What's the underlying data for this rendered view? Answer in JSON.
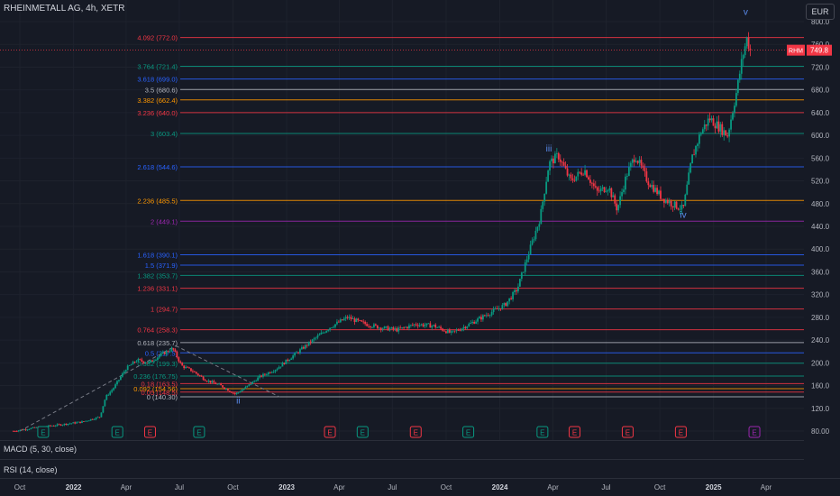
{
  "header": {
    "symbol_title": "RHEINMETALL AG, 4h, XETR",
    "currency": "EUR"
  },
  "price_axis": {
    "ticks": [
      "800.0",
      "760.0",
      "720.0",
      "680.0",
      "640.0",
      "600.0",
      "560.0",
      "520.0",
      "480.0",
      "440.0",
      "400.0",
      "360.0",
      "320.0",
      "280.0",
      "240.0",
      "200.0",
      "160.0",
      "120.0",
      "80.00"
    ]
  },
  "time_axis": {
    "labels": [
      "Oct",
      "2022",
      "Apr",
      "Jul",
      "Oct",
      "2023",
      "Apr",
      "Jul",
      "Oct",
      "2024",
      "Apr",
      "Jul",
      "Oct",
      "2025",
      "Apr"
    ]
  },
  "last_price": {
    "ticker": "RHM",
    "value": "749.8",
    "color": "#f23645"
  },
  "fib_levels": [
    {
      "label": "4.092 (772.0)",
      "value": 772.0,
      "color": "#f23645"
    },
    {
      "label": "3.764 (721.4)",
      "value": 721.4,
      "color": "#089981"
    },
    {
      "label": "3.618 (699.0)",
      "value": 699.0,
      "color": "#2962ff"
    },
    {
      "label": "3.5 (680.6)",
      "value": 680.6,
      "color": "#b2b5be"
    },
    {
      "label": "3.382 (662.4)",
      "value": 662.4,
      "color": "#ff9800"
    },
    {
      "label": "3.236 (640.0)",
      "value": 640.0,
      "color": "#f23645"
    },
    {
      "label": "3 (603.4)",
      "value": 603.4,
      "color": "#089981"
    },
    {
      "label": "2.618 (544.6)",
      "value": 544.6,
      "color": "#2962ff"
    },
    {
      "label": "2.236 (485.5)",
      "value": 485.5,
      "color": "#ff9800"
    },
    {
      "label": "2 (449.1)",
      "value": 449.1,
      "color": "#9c27b0"
    },
    {
      "label": "1.618 (390.1)",
      "value": 390.1,
      "color": "#2962ff"
    },
    {
      "label": "1.5 (371.9)",
      "value": 371.9,
      "color": "#2962ff"
    },
    {
      "label": "1.382 (353.7)",
      "value": 353.7,
      "color": "#089981"
    },
    {
      "label": "1.236 (331.1)",
      "value": 331.1,
      "color": "#f23645"
    },
    {
      "label": "1 (294.7)",
      "value": 294.7,
      "color": "#f23645"
    },
    {
      "label": "0.764 (258.3)",
      "value": 258.3,
      "color": "#f23645"
    },
    {
      "label": "0.618 (235.7)",
      "value": 235.7,
      "color": "#b2b5be"
    },
    {
      "label": "0.5 (217.5)",
      "value": 217.5,
      "color": "#2962ff"
    },
    {
      "label": "0.382 (199.3)",
      "value": 199.3,
      "color": "#089981"
    },
    {
      "label": "0.236 (176.75)",
      "value": 176.75,
      "color": "#089981"
    },
    {
      "label": "0.18 (163.5)",
      "value": 163.5,
      "color": "#f23645"
    },
    {
      "label": "0.092 (154.56)",
      "value": 154.56,
      "color": "#ff9800"
    },
    {
      "label": "0.05 (148.5)",
      "value": 148.5,
      "color": "#f23645"
    },
    {
      "label": "0 (140.30)",
      "value": 140.3,
      "color": "#b2b5be"
    }
  ],
  "wave_labels": [
    {
      "text": "ii",
      "date": "2022-10-10",
      "price": 128,
      "color": "#5b8def"
    },
    {
      "text": "iii",
      "date": "2024-03-25",
      "price": 572,
      "color": "#5b8def"
    },
    {
      "text": "iv",
      "date": "2024-11-10",
      "price": 455,
      "color": "#5b8def"
    },
    {
      "text": "v",
      "date": "2025-02-25",
      "price": 812,
      "color": "#5b8def"
    }
  ],
  "earnings_markers": [
    {
      "type": "E",
      "kind": "positive",
      "date": "2021-11-10"
    },
    {
      "type": "E",
      "kind": "positive",
      "date": "2022-03-17"
    },
    {
      "type": "E",
      "kind": "negative",
      "date": "2022-05-12"
    },
    {
      "type": "E",
      "kind": "positive",
      "date": "2022-08-04"
    },
    {
      "type": "E",
      "kind": "negative",
      "date": "2023-03-16"
    },
    {
      "type": "E",
      "kind": "positive",
      "date": "2023-05-11"
    },
    {
      "type": "E",
      "kind": "negative",
      "date": "2023-08-10"
    },
    {
      "type": "E",
      "kind": "positive",
      "date": "2023-11-08"
    },
    {
      "type": "E",
      "kind": "positive",
      "date": "2024-03-14"
    },
    {
      "type": "E",
      "kind": "negative",
      "date": "2024-05-08"
    },
    {
      "type": "E",
      "kind": "negative",
      "date": "2024-08-07"
    },
    {
      "type": "E",
      "kind": "negative",
      "date": "2024-11-06"
    },
    {
      "type": "E",
      "kind": "upcoming",
      "date": "2025-03-12"
    }
  ],
  "indicators": {
    "macd_label": "MACD (5, 30, close)",
    "rsi_label": "RSI (14, close)"
  },
  "colors": {
    "up": "#089981",
    "down": "#f23645",
    "background": "#161a25",
    "grid": "#1e222d"
  },
  "chart_data": {
    "type": "candlestick",
    "title": "RHEINMETALL AG, 4h, XETR",
    "ylim": [
      80,
      820
    ],
    "series": [
      {
        "name": "RHM",
        "points": [
          [
            "2021-09-20",
            80
          ],
          [
            "2021-10-15",
            84
          ],
          [
            "2021-11-15",
            88
          ],
          [
            "2021-12-15",
            92
          ],
          [
            "2022-01-15",
            96
          ],
          [
            "2022-02-15",
            105
          ],
          [
            "2022-02-25",
            140
          ],
          [
            "2022-03-10",
            155
          ],
          [
            "2022-04-01",
            190
          ],
          [
            "2022-04-20",
            205
          ],
          [
            "2022-05-10",
            200
          ],
          [
            "2022-06-01",
            215
          ],
          [
            "2022-06-20",
            225
          ],
          [
            "2022-07-05",
            195
          ],
          [
            "2022-07-25",
            185
          ],
          [
            "2022-08-15",
            170
          ],
          [
            "2022-09-10",
            160
          ],
          [
            "2022-10-05",
            145
          ],
          [
            "2022-10-25",
            158
          ],
          [
            "2022-11-15",
            175
          ],
          [
            "2022-12-15",
            190
          ],
          [
            "2023-01-15",
            215
          ],
          [
            "2023-02-15",
            240
          ],
          [
            "2023-03-15",
            262
          ],
          [
            "2023-04-15",
            280
          ],
          [
            "2023-05-10",
            270
          ],
          [
            "2023-06-10",
            262
          ],
          [
            "2023-07-10",
            258
          ],
          [
            "2023-08-10",
            268
          ],
          [
            "2023-09-10",
            265
          ],
          [
            "2023-10-10",
            252
          ],
          [
            "2023-11-10",
            268
          ],
          [
            "2023-12-10",
            285
          ],
          [
            "2024-01-10",
            302
          ],
          [
            "2024-01-31",
            330
          ],
          [
            "2024-02-20",
            395
          ],
          [
            "2024-03-10",
            455
          ],
          [
            "2024-03-25",
            550
          ],
          [
            "2024-04-10",
            565
          ],
          [
            "2024-05-01",
            520
          ],
          [
            "2024-05-25",
            540
          ],
          [
            "2024-06-15",
            500
          ],
          [
            "2024-07-05",
            510
          ],
          [
            "2024-07-20",
            470
          ],
          [
            "2024-08-05",
            530
          ],
          [
            "2024-08-20",
            565
          ],
          [
            "2024-09-10",
            520
          ],
          [
            "2024-10-05",
            490
          ],
          [
            "2024-10-25",
            478
          ],
          [
            "2024-11-10",
            470
          ],
          [
            "2024-11-25",
            560
          ],
          [
            "2024-12-10",
            605
          ],
          [
            "2024-12-25",
            630
          ],
          [
            "2025-01-10",
            615
          ],
          [
            "2025-01-25",
            600
          ],
          [
            "2025-02-10",
            680
          ],
          [
            "2025-02-20",
            740
          ],
          [
            "2025-02-27",
            770
          ],
          [
            "2025-03-05",
            749.8
          ]
        ]
      }
    ]
  }
}
